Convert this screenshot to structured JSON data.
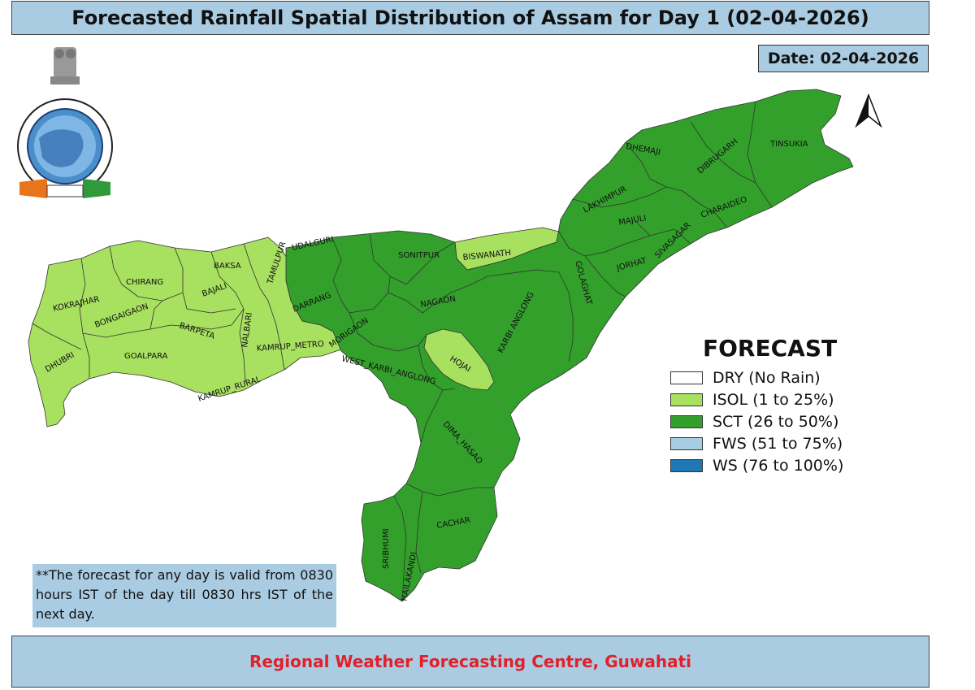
{
  "title": "Forecasted Rainfall Spatial Distribution of Assam for Day 1 (02-04-2026)",
  "date_label": "Date: 02-04-2026",
  "logo": {
    "icon": "imd-logo-icon"
  },
  "north_arrow": {
    "icon": "north-arrow-icon"
  },
  "legend": {
    "title": "FORECAST",
    "items": [
      {
        "label": "DRY (No Rain)",
        "color": "#ffffff"
      },
      {
        "label": "ISOL (1 to 25%)",
        "color": "#a8e05f"
      },
      {
        "label": "SCT (26 to 50%)",
        "color": "#33a02c"
      },
      {
        "label": "FWS (51 to 75%)",
        "color": "#a6cee3"
      },
      {
        "label": "WS (76 to 100%)",
        "color": "#1f78b4"
      }
    ]
  },
  "districts": [
    {
      "name": "KOKRAJHAR",
      "category": "ISOL"
    },
    {
      "name": "CHIRANG",
      "category": "ISOL"
    },
    {
      "name": "BAKSA",
      "category": "ISOL"
    },
    {
      "name": "BAJALI",
      "category": "ISOL"
    },
    {
      "name": "TAMULPUR",
      "category": "ISOL"
    },
    {
      "name": "BONGAIGAON",
      "category": "ISOL"
    },
    {
      "name": "BARPETA",
      "category": "ISOL"
    },
    {
      "name": "NALBARI",
      "category": "ISOL"
    },
    {
      "name": "DHUBRI",
      "category": "ISOL"
    },
    {
      "name": "GOALPARA",
      "category": "ISOL"
    },
    {
      "name": "KAMRUP_METRO",
      "category": "ISOL"
    },
    {
      "name": "KAMRUP_RURAL",
      "category": "ISOL"
    },
    {
      "name": "BISWANATH",
      "category": "ISOL"
    },
    {
      "name": "HOJAI",
      "category": "ISOL"
    },
    {
      "name": "UDALGURI",
      "category": "SCT"
    },
    {
      "name": "SONITPUR",
      "category": "SCT"
    },
    {
      "name": "DARRANG",
      "category": "SCT"
    },
    {
      "name": "MORIGAON",
      "category": "SCT"
    },
    {
      "name": "NAGAON",
      "category": "SCT"
    },
    {
      "name": "WEST_KARBI_ANGLONG",
      "category": "SCT"
    },
    {
      "name": "KARBI ANGLONG",
      "category": "SCT"
    },
    {
      "name": "GOLAGHAT",
      "category": "SCT"
    },
    {
      "name": "JORHAT",
      "category": "SCT"
    },
    {
      "name": "SIVASAGAR",
      "category": "SCT"
    },
    {
      "name": "MAJULI",
      "category": "SCT"
    },
    {
      "name": "LAKHIMPUR",
      "category": "SCT"
    },
    {
      "name": "DHEMAJI",
      "category": "SCT"
    },
    {
      "name": "DIBRUGARH",
      "category": "SCT"
    },
    {
      "name": "TINSUKIA",
      "category": "SCT"
    },
    {
      "name": "CHARAIDEO",
      "category": "SCT"
    },
    {
      "name": "DIMA_HASAO",
      "category": "SCT"
    },
    {
      "name": "CACHAR",
      "category": "SCT"
    },
    {
      "name": "SRIBHUMI",
      "category": "SCT"
    },
    {
      "name": "HAILAKANDI",
      "category": "SCT"
    }
  ],
  "note": "**The forecast for any day is valid from 0830 hours IST of the day till 0830 hrs IST of the next day.",
  "footer": "Regional Weather Forecasting Centre, Guwahati"
}
